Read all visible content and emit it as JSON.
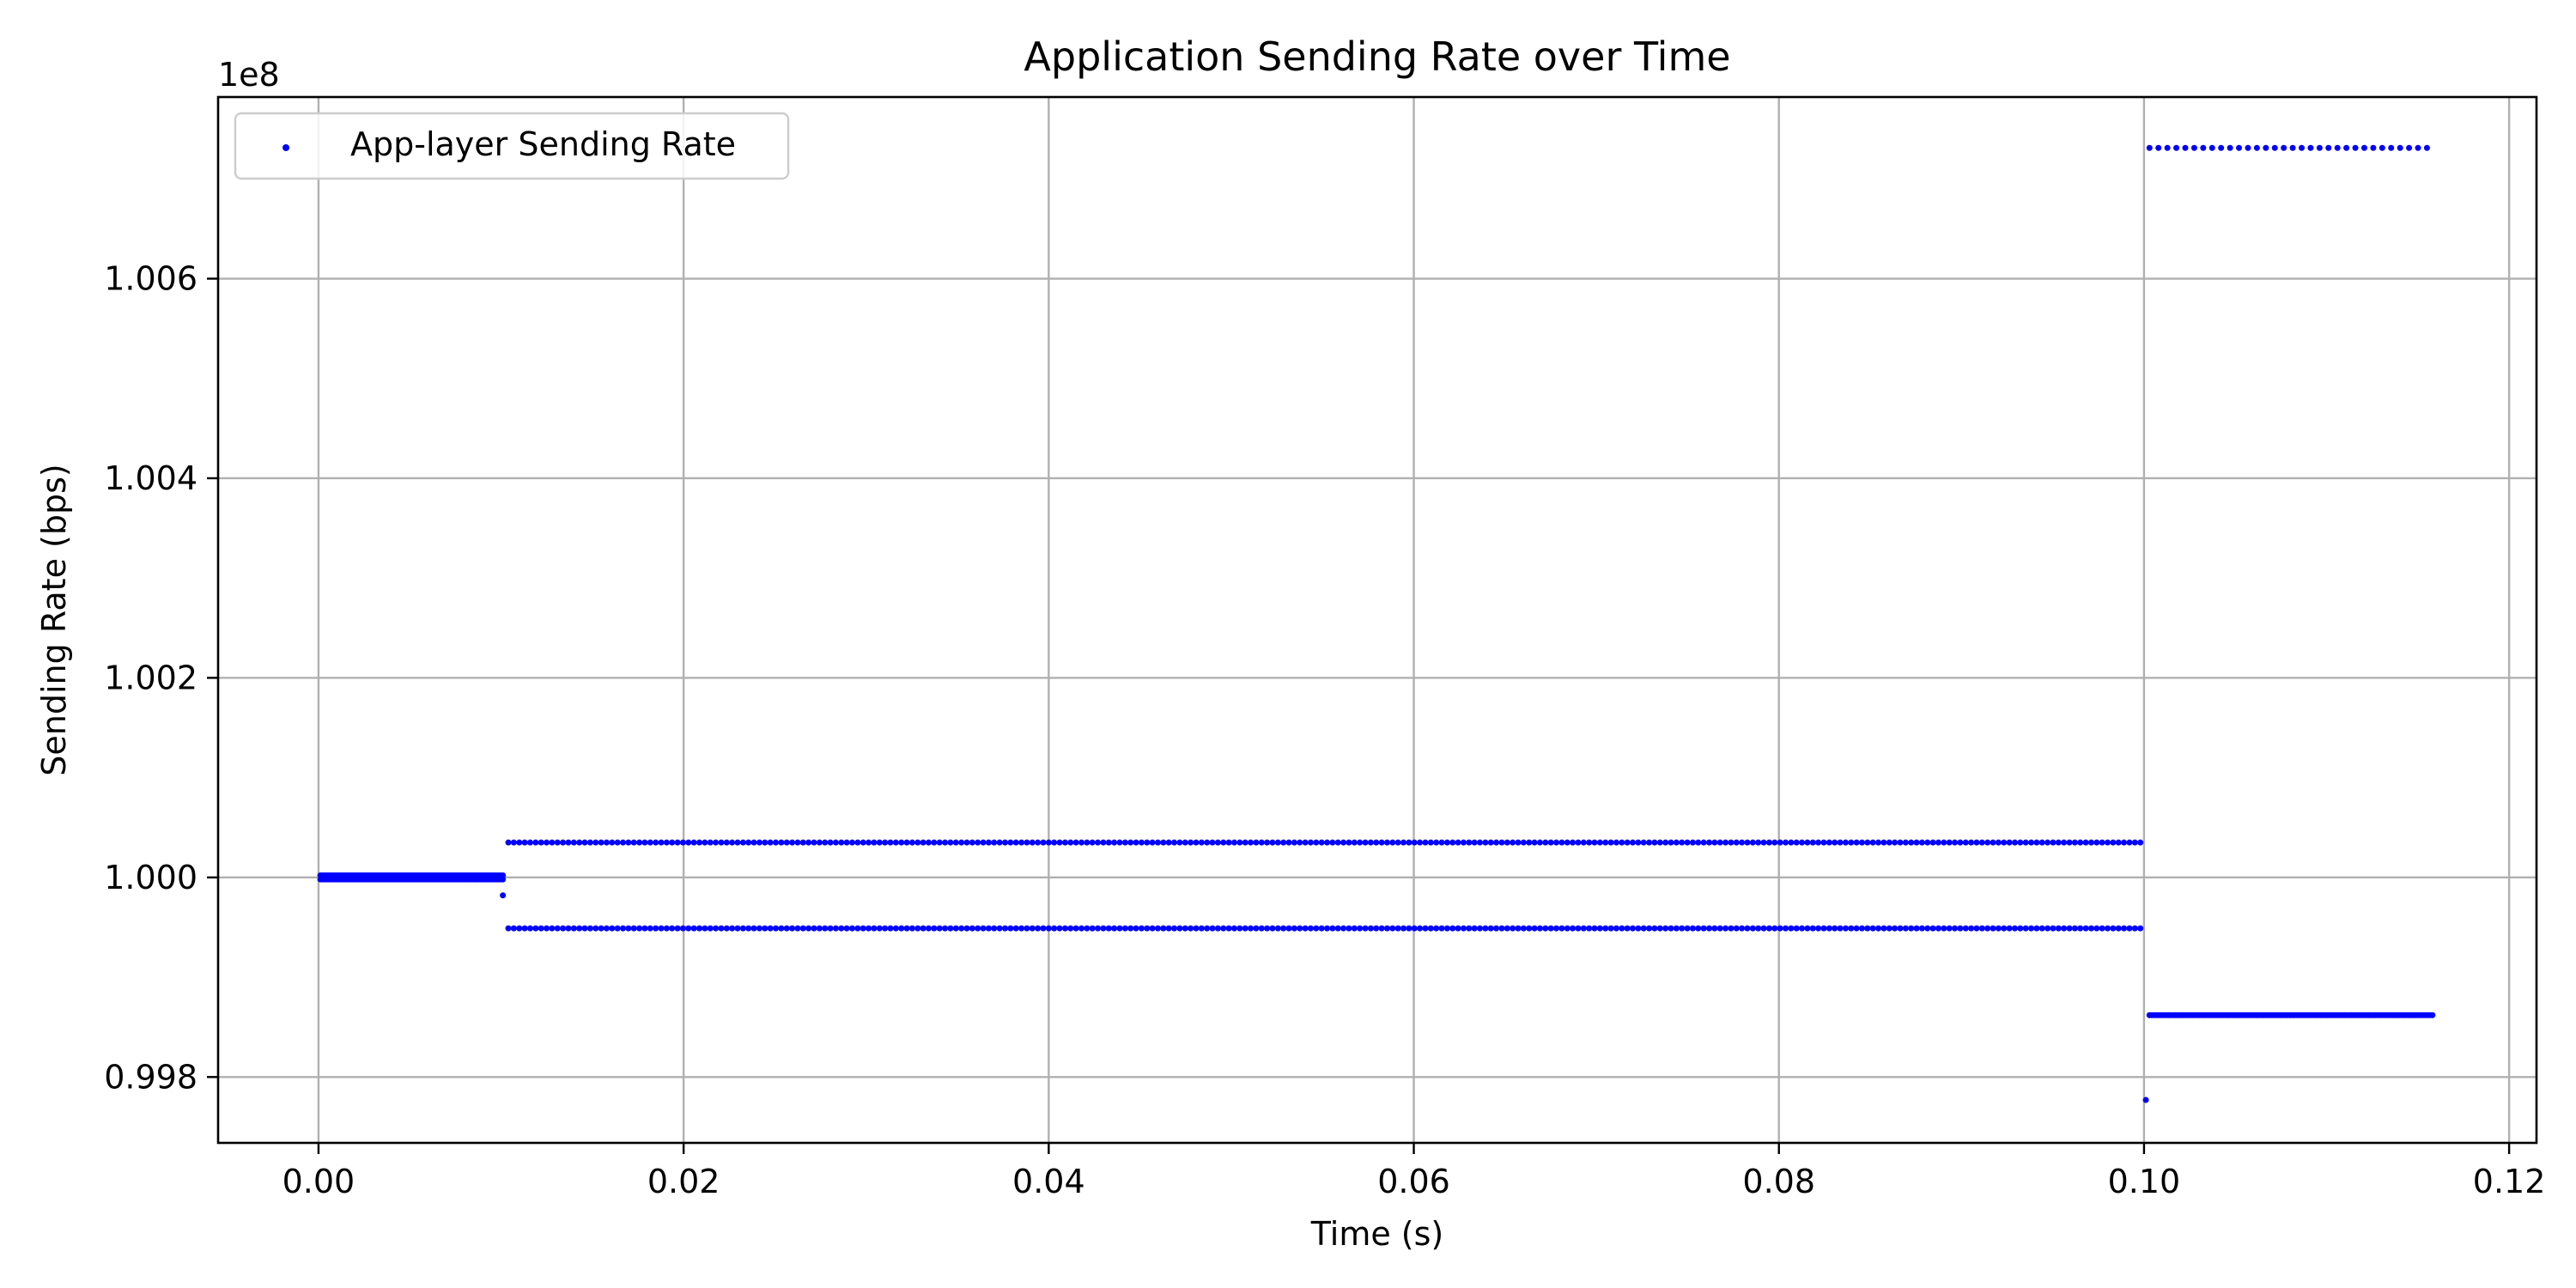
{
  "chart_data": {
    "type": "scatter",
    "title": "Application Sending Rate over Time",
    "xlabel": "Time (s)",
    "ylabel": "Sending Rate (bps)",
    "y_offset_label": "1e8",
    "xlim": [
      -0.0055,
      0.1215
    ],
    "ylim": [
      0.99734,
      1.00782
    ],
    "y_scale_multiplier": 100000000,
    "x_ticks": [
      0.0,
      0.02,
      0.04,
      0.06,
      0.08,
      0.1,
      0.12
    ],
    "x_tick_labels": [
      "0.00",
      "0.02",
      "0.04",
      "0.06",
      "0.08",
      "0.10",
      "0.12"
    ],
    "y_ticks": [
      0.998,
      1.0,
      1.002,
      1.004,
      1.006
    ],
    "y_tick_labels": [
      "0.998",
      "1.000",
      "1.002",
      "1.004",
      "1.006"
    ],
    "grid": true,
    "legend_position": "upper-left",
    "series": [
      {
        "name": "App-layer Sending Rate",
        "color": "#0000ff",
        "segments": [
          {
            "x_start": 0.0001,
            "x_end": 0.0101,
            "y": 1.00002,
            "points": 100
          },
          {
            "x_start": 0.0001,
            "x_end": 0.0101,
            "y": 0.99998,
            "points": 100
          },
          {
            "x_start": 0.0104,
            "x_end": 0.0998,
            "y": 1.00035,
            "points": 300
          },
          {
            "x_start": 0.0104,
            "x_end": 0.0998,
            "y": 0.99949,
            "points": 300
          },
          {
            "x_start": 0.1003,
            "x_end": 0.1158,
            "y": 0.99862,
            "points": 120
          },
          {
            "x_start": 0.1003,
            "x_end": 0.1155,
            "y": 1.00731,
            "points": 32
          }
        ],
        "points": [
          {
            "x": 0.0101,
            "y": 0.99982
          },
          {
            "x": 0.1001,
            "y": 0.99777
          }
        ]
      }
    ]
  }
}
